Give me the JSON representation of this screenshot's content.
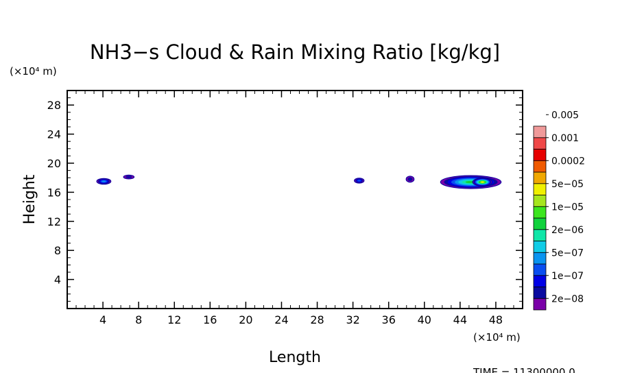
{
  "chart_data": {
    "type": "heatmap",
    "title": "NH3−s Cloud & Rain Mixing Ratio [kg/kg]",
    "xlabel": "Length",
    "ylabel": "Height",
    "x_unit": "(×10⁴ m)",
    "y_unit": "(×10⁴ m)",
    "xlim": [
      0,
      51
    ],
    "ylim": [
      0,
      30
    ],
    "x_ticks": [
      4,
      8,
      12,
      16,
      20,
      24,
      28,
      32,
      36,
      40,
      44,
      48
    ],
    "y_ticks": [
      4,
      8,
      12,
      16,
      20,
      24,
      28
    ],
    "time_label": "TIME = 11300000.0",
    "colorbar": {
      "colors": [
        "#7a00a8",
        "#0a0aa0",
        "#0000e6",
        "#0a4ef0",
        "#0a94f0",
        "#10cce6",
        "#10e6a8",
        "#10d23c",
        "#3ce61e",
        "#a6e61e",
        "#f0f000",
        "#f0a800",
        "#f05a00",
        "#e60000",
        "#f04848",
        "#f09a9a"
      ],
      "labels": [
        "2e−08",
        "1e−07",
        "5e−07",
        "2e−06",
        "1e−05",
        "5e−05",
        "0.0002",
        "0.001",
        "0.005"
      ],
      "grid": false
    },
    "blobs": [
      {
        "x": 4.1,
        "y": 17.5,
        "w": 1.6,
        "h": 0.8,
        "level": 4
      },
      {
        "x": 6.9,
        "y": 18.1,
        "w": 1.2,
        "h": 0.55,
        "level": 1
      },
      {
        "x": 32.7,
        "y": 17.6,
        "w": 1.1,
        "h": 0.7,
        "level": 3
      },
      {
        "x": 38.4,
        "y": 17.8,
        "w": 0.9,
        "h": 0.85,
        "level": 1
      },
      {
        "x": 45.2,
        "y": 17.4,
        "w": 6.8,
        "h": 1.8,
        "level": 7
      },
      {
        "x": 46.5,
        "y": 17.4,
        "w": 2.2,
        "h": 1.1,
        "level": 10
      }
    ]
  }
}
